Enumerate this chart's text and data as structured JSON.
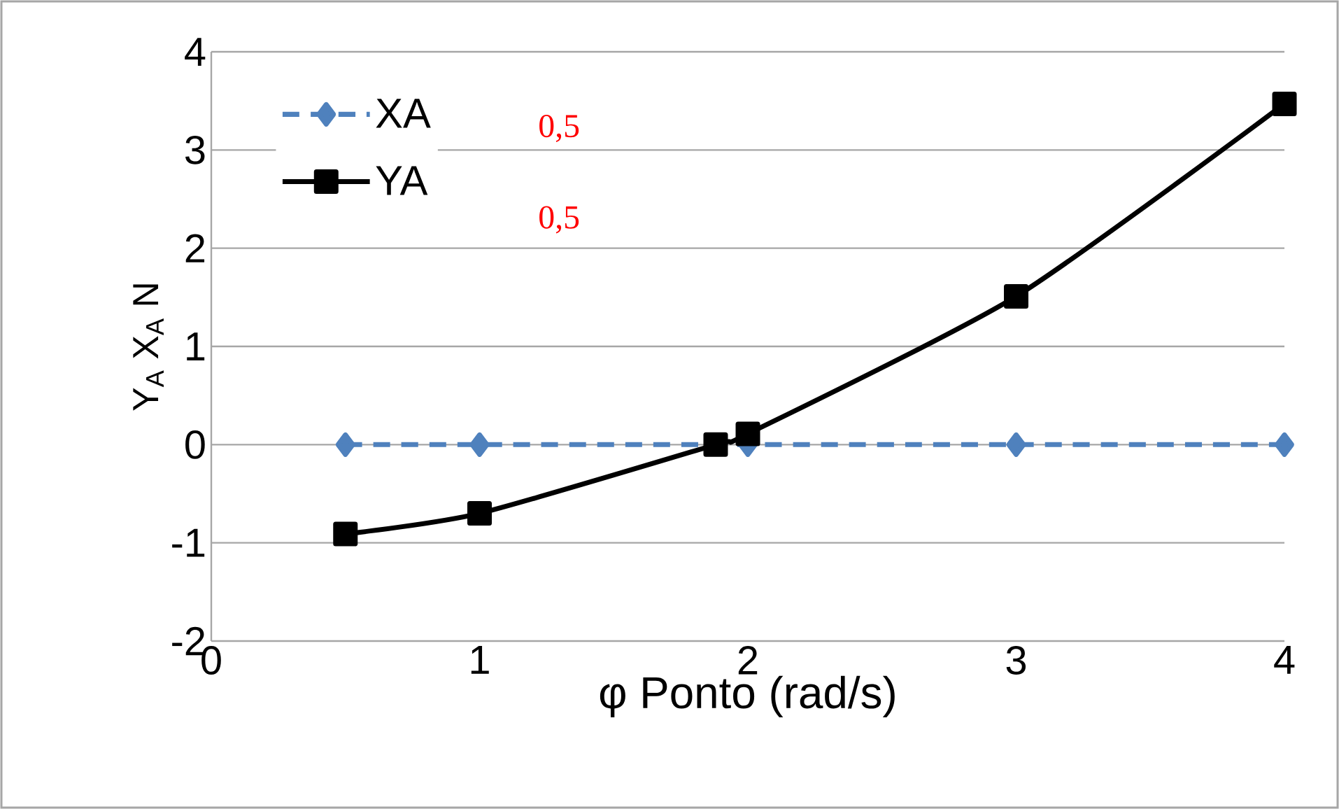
{
  "chart_data": {
    "type": "line",
    "xlabel": "φ Ponto (rad/s)",
    "ylabel": "Y$_{A}$ X$_{A}$ N",
    "series": [
      {
        "name": "XA",
        "color": "#4f81bd",
        "marker": "diamond",
        "line_style": "dashed",
        "x": [
          0.5,
          1,
          2,
          3,
          4
        ],
        "values": [
          0,
          0,
          0,
          0,
          0
        ]
      },
      {
        "name": "YA",
        "color": "#000000",
        "marker": "square",
        "line_style": "solid",
        "x": [
          0.5,
          1,
          1.88,
          2,
          3,
          4
        ],
        "values": [
          -0.91,
          -0.7,
          0,
          0.11,
          1.51,
          3.47
        ]
      }
    ],
    "annotations": [
      "0,5",
      "0,5"
    ],
    "xlim": [
      0,
      4
    ],
    "xticks": [
      0,
      1,
      2,
      3,
      4
    ],
    "ylim": [
      -2,
      4
    ],
    "yticks": [
      -2,
      -1,
      0,
      1,
      2,
      3,
      4
    ],
    "grid": "y",
    "legend": "top left"
  }
}
